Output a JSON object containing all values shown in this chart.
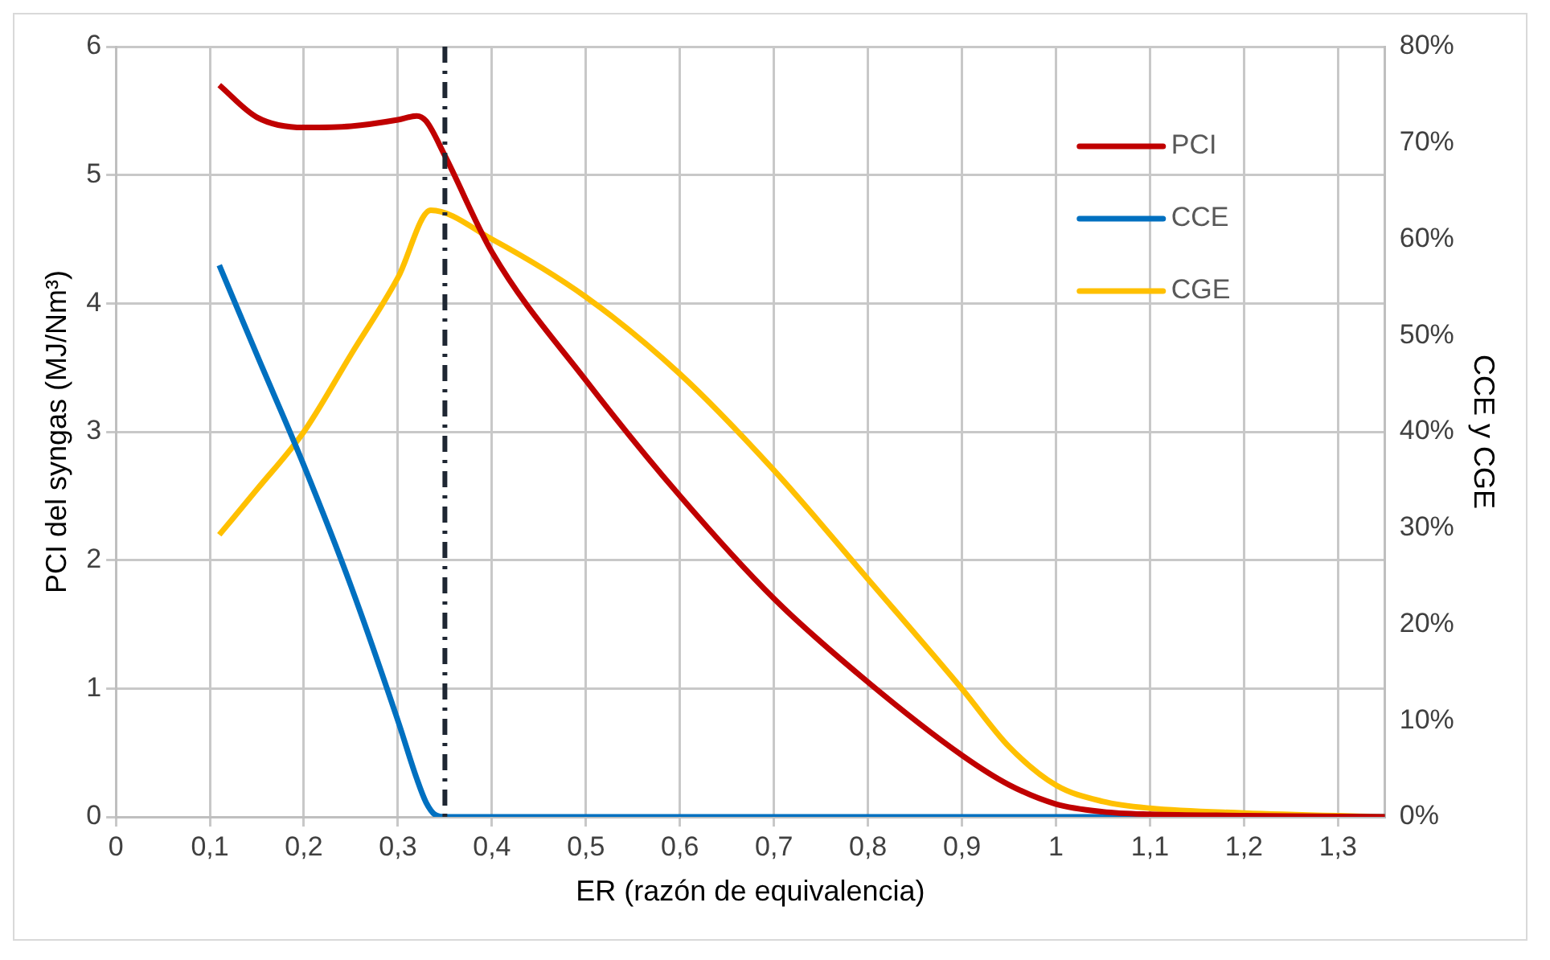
{
  "chart_data": {
    "type": "line",
    "xlabel": "ER (razón de equivalencia)",
    "ylabel": "PCI del syngas (MJ/Nm³)",
    "y2label": "CCE y CGE",
    "xlim": [
      0,
      1.35
    ],
    "xticks": [
      0,
      {
        "value": 0.1,
        "label": "0,1"
      },
      {
        "value": 0.2,
        "label": "0,2"
      },
      {
        "value": 0.3,
        "label": "0,3"
      },
      {
        "value": 0.4,
        "label": "0,4"
      },
      {
        "value": 0.5,
        "label": "0,5"
      },
      {
        "value": 0.6,
        "label": "0,6"
      },
      {
        "value": 0.7,
        "label": "0,7"
      },
      {
        "value": 0.8,
        "label": "0,8"
      },
      {
        "value": 0.9,
        "label": "0,9"
      },
      1,
      {
        "value": 1.1,
        "label": "1,1"
      },
      {
        "value": 1.2,
        "label": "1,2"
      },
      {
        "value": 1.3,
        "label": "1,3"
      }
    ],
    "ylim": [
      0,
      6
    ],
    "yticks": [
      0,
      1,
      2,
      3,
      4,
      5,
      6
    ],
    "y2lim": [
      0,
      80
    ],
    "y2ticks": [
      {
        "value": 0,
        "label": "0%"
      },
      {
        "value": 10,
        "label": "10%"
      },
      {
        "value": 20,
        "label": "20%"
      },
      {
        "value": 30,
        "label": "30%"
      },
      {
        "value": 40,
        "label": "40%"
      },
      {
        "value": 50,
        "label": "50%"
      },
      {
        "value": 60,
        "label": "60%"
      },
      {
        "value": 70,
        "label": "70%"
      },
      {
        "value": 80,
        "label": "80%"
      }
    ],
    "grid": true,
    "legend": "top right",
    "marker": "none",
    "line_style": "solid",
    "ref_lines": [
      {
        "axis": "x",
        "value": 0.35,
        "color": "#1f2733",
        "line_style": "dashdot"
      }
    ],
    "series": [
      {
        "name": "PCI",
        "color": "#c00000",
        "x": [
          0.11,
          0.15,
          0.2,
          0.25,
          0.3,
          0.32,
          0.33,
          0.35,
          0.4,
          0.5,
          0.6,
          0.7,
          0.8,
          0.9,
          0.95,
          1.0,
          1.05,
          1.1,
          1.2,
          1.35
        ],
        "values": [
          5.7,
          5.45,
          5.37,
          5.38,
          5.43,
          5.46,
          5.42,
          5.15,
          4.4,
          3.4,
          2.5,
          1.7,
          1.05,
          0.48,
          0.25,
          0.1,
          0.04,
          0.02,
          0.01,
          0
        ]
      },
      {
        "name": "CCE",
        "color": "#0070c0",
        "axis": "y2",
        "x": [
          0.11,
          0.15,
          0.2,
          0.25,
          0.3,
          0.32,
          0.33,
          0.34,
          0.35,
          1.35
        ],
        "values": [
          57.3,
          48,
          36.5,
          24,
          10,
          4,
          1.5,
          0.2,
          0,
          0
        ]
      },
      {
        "name": "CGE",
        "color": "#ffc000",
        "axis": "y2",
        "x": [
          0.11,
          0.15,
          0.2,
          0.25,
          0.3,
          0.335,
          0.4,
          0.5,
          0.6,
          0.7,
          0.8,
          0.9,
          0.95,
          1.0,
          1.05,
          1.1,
          1.2,
          1.35
        ],
        "values": [
          29.3,
          34,
          40,
          48,
          56,
          63,
          60,
          54,
          46,
          36,
          24.7,
          13.3,
          7.3,
          3.3,
          1.6,
          0.9,
          0.4,
          0
        ]
      }
    ]
  }
}
